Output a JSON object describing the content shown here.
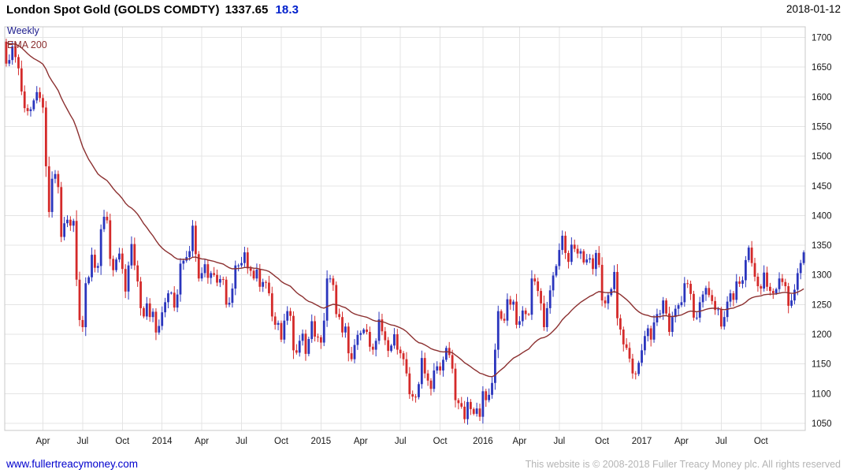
{
  "header": {
    "title": "London Spot Gold (GOLDS COMDTY)",
    "last_price": "1337.65",
    "change": "18.3",
    "date": "2018-01-12"
  },
  "legend": {
    "timeframe": "Weekly",
    "overlay": "EMA 200"
  },
  "footer": {
    "link": "www.fullertreacymoney.com",
    "copyright": "This website is © 2008-2018 Fuller Treacy Money plc. All rights reserved"
  },
  "colors": {
    "up": "#2a35bd",
    "down": "#d42a2a",
    "ema": "#8c3030",
    "grid": "#e4e4e4",
    "frame": "#c8c8c8",
    "axis_text": "#161616"
  },
  "chart_data": {
    "type": "candlestick",
    "title": "London Spot Gold (GOLDS COMDTY)",
    "timeframe": "Weekly",
    "overlay": "EMA 200",
    "last_price": 1337.65,
    "change": 18.3,
    "ylim": [
      1038,
      1718
    ],
    "y_ticks": [
      1050,
      1100,
      1150,
      1200,
      1250,
      1300,
      1350,
      1400,
      1450,
      1500,
      1550,
      1600,
      1650,
      1700
    ],
    "x_ticks": [
      {
        "label": "Apr",
        "week": 12
      },
      {
        "label": "Jul",
        "week": 25
      },
      {
        "label": "Oct",
        "week": 38
      },
      {
        "label": "2014",
        "week": 51
      },
      {
        "label": "Apr",
        "week": 64
      },
      {
        "label": "Jul",
        "week": 77
      },
      {
        "label": "Oct",
        "week": 90
      },
      {
        "label": "2015",
        "week": 103
      },
      {
        "label": "Apr",
        "week": 116
      },
      {
        "label": "Jul",
        "week": 129
      },
      {
        "label": "Oct",
        "week": 142
      },
      {
        "label": "2016",
        "week": 156
      },
      {
        "label": "Apr",
        "week": 168
      },
      {
        "label": "Jul",
        "week": 181
      },
      {
        "label": "Oct",
        "week": 195
      },
      {
        "label": "2017",
        "week": 208
      },
      {
        "label": "Apr",
        "week": 221
      },
      {
        "label": "Jul",
        "week": 234
      },
      {
        "label": "Oct",
        "week": 247
      }
    ],
    "first_open": 1693,
    "weekly_closes": [
      1656,
      1662,
      1685,
      1667,
      1648,
      1609,
      1581,
      1576,
      1579,
      1594,
      1608,
      1598,
      1582,
      1483,
      1406,
      1462,
      1470,
      1448,
      1364,
      1387,
      1393,
      1383,
      1391,
      1292,
      1224,
      1212,
      1286,
      1296,
      1334,
      1312,
      1315,
      1377,
      1398,
      1392,
      1327,
      1308,
      1326,
      1336,
      1310,
      1272,
      1316,
      1352,
      1316,
      1289,
      1244,
      1230,
      1252,
      1229,
      1238,
      1203,
      1214,
      1237,
      1254,
      1269,
      1270,
      1245,
      1267,
      1319,
      1324,
      1330,
      1340,
      1383,
      1335,
      1294,
      1303,
      1318,
      1295,
      1303,
      1300,
      1287,
      1293,
      1292,
      1250,
      1253,
      1277,
      1316,
      1316,
      1320,
      1338,
      1311,
      1307,
      1294,
      1309,
      1280,
      1288,
      1287,
      1269,
      1230,
      1216,
      1219,
      1191,
      1223,
      1239,
      1231,
      1173,
      1169,
      1189,
      1201,
      1167,
      1192,
      1222,
      1196,
      1195,
      1186,
      1223,
      1294,
      1294,
      1283,
      1234,
      1229,
      1203,
      1213,
      1168,
      1158,
      1182,
      1199,
      1202,
      1208,
      1204,
      1179,
      1174,
      1189,
      1225,
      1205,
      1190,
      1172,
      1181,
      1200,
      1174,
      1168,
      1158,
      1134,
      1099,
      1095,
      1094,
      1116,
      1160,
      1134,
      1122,
      1108,
      1139,
      1146,
      1139,
      1157,
      1177,
      1165,
      1142,
      1089,
      1084,
      1078,
      1057,
      1086,
      1074,
      1066,
      1075,
      1061,
      1104,
      1089,
      1098,
      1118,
      1174,
      1239,
      1226,
      1223,
      1259,
      1250,
      1255,
      1216,
      1222,
      1240,
      1234,
      1233,
      1294,
      1289,
      1273,
      1252,
      1212,
      1244,
      1274,
      1299,
      1315,
      1342,
      1366,
      1337,
      1322,
      1351,
      1344,
      1336,
      1340,
      1321,
      1326,
      1328,
      1310,
      1337,
      1317,
      1257,
      1252,
      1266,
      1276,
      1305,
      1227,
      1208,
      1183,
      1177,
      1159,
      1134,
      1133,
      1152,
      1173,
      1197,
      1210,
      1191,
      1220,
      1234,
      1235,
      1257,
      1235,
      1204,
      1229,
      1243,
      1249,
      1254,
      1286,
      1285,
      1268,
      1228,
      1228,
      1254,
      1267,
      1278,
      1266,
      1256,
      1241,
      1242,
      1213,
      1229,
      1255,
      1269,
      1258,
      1289,
      1285,
      1291,
      1325,
      1346,
      1320,
      1297,
      1281,
      1277,
      1304,
      1280,
      1273,
      1269,
      1276,
      1294,
      1288,
      1281,
      1248,
      1257,
      1275,
      1303,
      1320,
      1338
    ]
  }
}
